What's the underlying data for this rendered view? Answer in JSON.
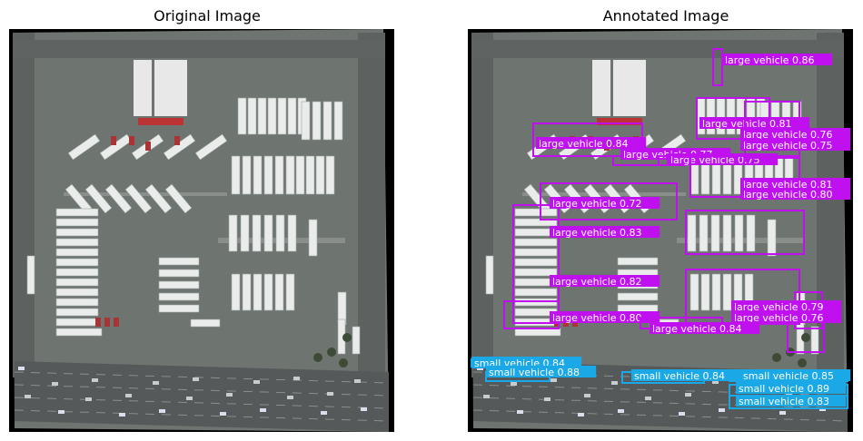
{
  "panels": {
    "left_title": "Original Image",
    "right_title": "Annotated Image"
  },
  "colors": {
    "large_vehicle": "#c010f0",
    "small_vehicle": "#1aa8e6",
    "asphalt": "#6e7470",
    "road": "#55595a",
    "background": "#000000"
  },
  "detections": [
    {
      "class": "large vehicle",
      "score": "0.86"
    },
    {
      "class": "large vehicle",
      "score": "0.81"
    },
    {
      "class": "large vehicle",
      "score": "0.84"
    },
    {
      "class": "large vehicle",
      "score": "0.77"
    },
    {
      "class": "large vehicle",
      "score": "0.75"
    },
    {
      "class": "large vehicle",
      "score": "0.76"
    },
    {
      "class": "large vehicle",
      "score": "0.75"
    },
    {
      "class": "large vehicle",
      "score": "0.81"
    },
    {
      "class": "large vehicle",
      "score": "0.80"
    },
    {
      "class": "large vehicle",
      "score": "0.72"
    },
    {
      "class": "large vehicle",
      "score": "0.83"
    },
    {
      "class": "large vehicle",
      "score": "0.82"
    },
    {
      "class": "large vehicle",
      "score": "0.80"
    },
    {
      "class": "large vehicle",
      "score": "0.79"
    },
    {
      "class": "large vehicle",
      "score": "0.76"
    },
    {
      "class": "large vehicle",
      "score": "0.84"
    },
    {
      "class": "small vehicle",
      "score": "0.84"
    },
    {
      "class": "small vehicle",
      "score": "0.88"
    },
    {
      "class": "small vehicle",
      "score": "0.84"
    },
    {
      "class": "small vehicle",
      "score": "0.85"
    },
    {
      "class": "small vehicle",
      "score": "0.89"
    },
    {
      "class": "small vehicle",
      "score": "0.83"
    }
  ]
}
